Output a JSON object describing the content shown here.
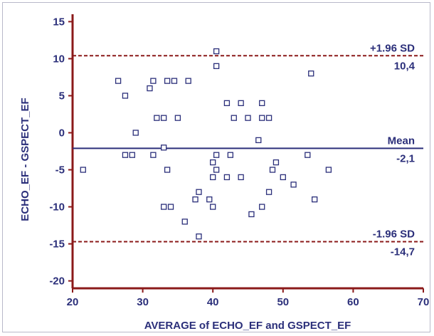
{
  "chart_data": {
    "type": "scatter",
    "title": "",
    "xlabel": "AVERAGE of ECHO_EF and GSPECT_EF",
    "ylabel": "ECHO_EF - GSPECT_EF",
    "xlim": [
      20,
      70
    ],
    "ylim": [
      -21,
      16
    ],
    "xticks": [
      20,
      30,
      40,
      50,
      60,
      70
    ],
    "yticks": [
      15,
      10,
      5,
      0,
      -5,
      -10,
      -15,
      -20
    ],
    "grid": false,
    "colors": {
      "axis": "#8b1a1a",
      "text": "#2b2f7a",
      "mean_line": "#2b2f7a",
      "sd_line": "#8b1a1a",
      "marker": "#2b2f7a"
    },
    "reference_lines": [
      {
        "label": "+1.96 SD",
        "value": 10.4,
        "value_label": "10,4",
        "style": "dashed",
        "color": "#8b1a1a"
      },
      {
        "label": "Mean",
        "value": -2.1,
        "value_label": "-2,1",
        "style": "solid",
        "color": "#2b2f7a"
      },
      {
        "label": "-1.96 SD",
        "value": -14.7,
        "value_label": "-14,7",
        "style": "dashed",
        "color": "#8b1a1a"
      }
    ],
    "points": [
      {
        "x": 21.5,
        "y": -5
      },
      {
        "x": 26.5,
        "y": 7
      },
      {
        "x": 27.5,
        "y": 5
      },
      {
        "x": 27.5,
        "y": -3
      },
      {
        "x": 28.5,
        "y": -3
      },
      {
        "x": 29,
        "y": 0
      },
      {
        "x": 31,
        "y": 6
      },
      {
        "x": 31.5,
        "y": 7
      },
      {
        "x": 31.5,
        "y": -3
      },
      {
        "x": 32,
        "y": 2
      },
      {
        "x": 33,
        "y": 2
      },
      {
        "x": 33,
        "y": -2
      },
      {
        "x": 33,
        "y": -10
      },
      {
        "x": 33.5,
        "y": 7
      },
      {
        "x": 33.5,
        "y": -5
      },
      {
        "x": 34,
        "y": -10
      },
      {
        "x": 34.5,
        "y": 7
      },
      {
        "x": 35,
        "y": 2
      },
      {
        "x": 36,
        "y": -12
      },
      {
        "x": 36.5,
        "y": 7
      },
      {
        "x": 37.5,
        "y": -9
      },
      {
        "x": 38,
        "y": -8
      },
      {
        "x": 38,
        "y": -14
      },
      {
        "x": 39.5,
        "y": -9
      },
      {
        "x": 40,
        "y": -4
      },
      {
        "x": 40,
        "y": -6
      },
      {
        "x": 40,
        "y": -10
      },
      {
        "x": 40.5,
        "y": 11
      },
      {
        "x": 40.5,
        "y": 9
      },
      {
        "x": 40.5,
        "y": -3
      },
      {
        "x": 40.5,
        "y": -5
      },
      {
        "x": 42,
        "y": 4
      },
      {
        "x": 42,
        "y": -6
      },
      {
        "x": 42.5,
        "y": -3
      },
      {
        "x": 43,
        "y": 2
      },
      {
        "x": 44,
        "y": 4
      },
      {
        "x": 44,
        "y": -6
      },
      {
        "x": 45,
        "y": 2
      },
      {
        "x": 45.5,
        "y": -11
      },
      {
        "x": 46.5,
        "y": -1
      },
      {
        "x": 47,
        "y": 4
      },
      {
        "x": 47,
        "y": 2
      },
      {
        "x": 47,
        "y": -10
      },
      {
        "x": 48,
        "y": 2
      },
      {
        "x": 48,
        "y": -8
      },
      {
        "x": 48.5,
        "y": -5
      },
      {
        "x": 49,
        "y": -4
      },
      {
        "x": 50,
        "y": -6
      },
      {
        "x": 51.5,
        "y": -7
      },
      {
        "x": 53.5,
        "y": -3
      },
      {
        "x": 54,
        "y": 8
      },
      {
        "x": 54.5,
        "y": -9
      },
      {
        "x": 56.5,
        "y": -5
      }
    ]
  }
}
